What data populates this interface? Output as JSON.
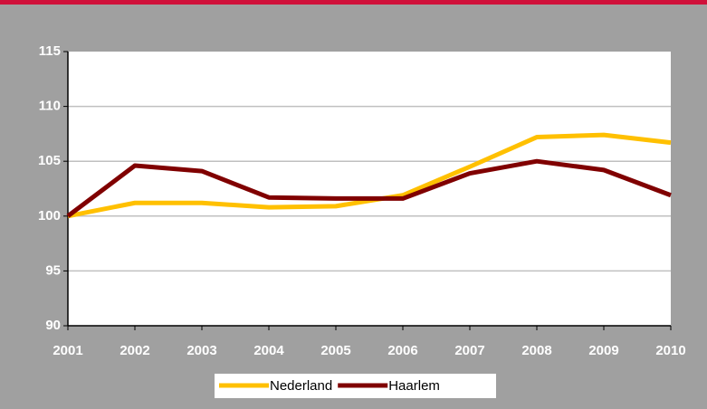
{
  "chart_data": {
    "type": "line",
    "categories": [
      "2001",
      "2002",
      "2003",
      "2004",
      "2005",
      "2006",
      "2007",
      "2008",
      "2009",
      "2010"
    ],
    "series": [
      {
        "name": "Nederland",
        "color": "#ffc000",
        "values": [
          100,
          101.2,
          101.2,
          100.8,
          100.9,
          101.9,
          104.5,
          107.2,
          107.4,
          106.7
        ]
      },
      {
        "name": "Haarlem",
        "color": "#800000",
        "values": [
          100,
          104.6,
          104.1,
          101.7,
          101.6,
          101.6,
          103.9,
          105.0,
          104.2,
          101.9
        ]
      }
    ],
    "ylim": [
      90,
      115
    ],
    "yticks": [
      90,
      95,
      100,
      105,
      110,
      115
    ],
    "grid": true,
    "legend": "bottom"
  }
}
